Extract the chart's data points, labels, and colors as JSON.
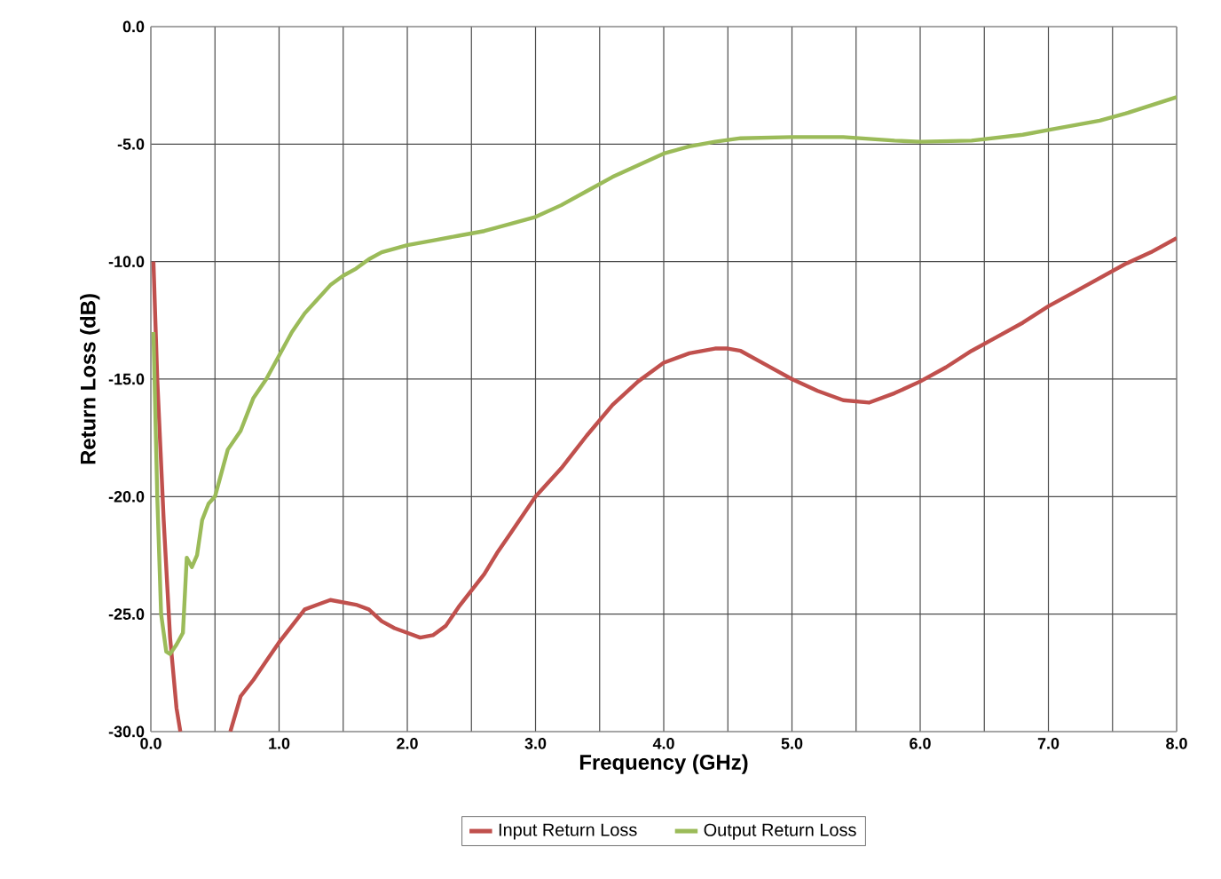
{
  "chart_data": {
    "type": "line",
    "xlabel": "Frequency (GHz)",
    "ylabel": "Return Loss (dB)",
    "grid": true,
    "legend": "bottom",
    "marker": "none",
    "line_style": "solid",
    "xlim": [
      0,
      8
    ],
    "ylim": [
      -30,
      0
    ],
    "xticks": [
      {
        "value": 0,
        "label": "0.0"
      },
      {
        "value": 1,
        "label": "1.0"
      },
      {
        "value": 2,
        "label": "2.0"
      },
      {
        "value": 3,
        "label": "3.0"
      },
      {
        "value": 4,
        "label": "4.0"
      },
      {
        "value": 5,
        "label": "5.0"
      },
      {
        "value": 6,
        "label": "6.0"
      },
      {
        "value": 7,
        "label": "7.0"
      },
      {
        "value": 8,
        "label": "8.0"
      }
    ],
    "yticks": [
      {
        "value": 0,
        "label": "0.0"
      },
      {
        "value": -5,
        "label": "-5.0"
      },
      {
        "value": -10,
        "label": "-10.0"
      },
      {
        "value": -15,
        "label": "-15.0"
      },
      {
        "value": -20,
        "label": "-20.0"
      },
      {
        "value": -25,
        "label": "-25.0"
      },
      {
        "value": -30,
        "label": "-30.0"
      }
    ],
    "series": [
      {
        "name": "Input Return Loss",
        "color": "#c0504d",
        "x": [
          0.02,
          0.05,
          0.1,
          0.15,
          0.2,
          0.23,
          0.4,
          0.62,
          0.7,
          0.8,
          0.9,
          1.0,
          1.1,
          1.2,
          1.3,
          1.4,
          1.5,
          1.6,
          1.7,
          1.8,
          1.9,
          2.0,
          2.1,
          2.2,
          2.3,
          2.4,
          2.5,
          2.6,
          2.7,
          2.8,
          2.9,
          3.0,
          3.2,
          3.4,
          3.6,
          3.8,
          4.0,
          4.2,
          4.4,
          4.5,
          4.6,
          4.8,
          5.0,
          5.2,
          5.4,
          5.6,
          5.8,
          6.0,
          6.2,
          6.4,
          6.6,
          6.8,
          7.0,
          7.2,
          7.4,
          7.6,
          7.8,
          8.0
        ],
        "values": [
          -10,
          -15,
          -21,
          -26,
          -29,
          -30,
          null,
          -30,
          -28.5,
          -27.8,
          -27,
          -26.2,
          -25.5,
          -24.8,
          -24.6,
          -24.4,
          -24.5,
          -24.6,
          -24.8,
          -25.3,
          -25.6,
          -25.8,
          -26.0,
          -25.9,
          -25.5,
          -24.7,
          -24.0,
          -23.3,
          -22.4,
          -21.6,
          -20.8,
          -20.0,
          -18.8,
          -17.4,
          -16.1,
          -15.1,
          -14.3,
          -13.9,
          -13.7,
          -13.7,
          -13.8,
          -14.4,
          -15.0,
          -15.5,
          -15.9,
          -16.0,
          -15.6,
          -15.1,
          -14.5,
          -13.8,
          -13.2,
          -12.6,
          -11.9,
          -11.3,
          -10.7,
          -10.1,
          -9.6,
          -9.0
        ]
      },
      {
        "name": "Output Return Loss",
        "color": "#9bbb59",
        "x": [
          0.02,
          0.05,
          0.08,
          0.12,
          0.15,
          0.2,
          0.25,
          0.28,
          0.32,
          0.36,
          0.4,
          0.45,
          0.5,
          0.55,
          0.6,
          0.7,
          0.8,
          0.9,
          1.0,
          1.1,
          1.2,
          1.3,
          1.4,
          1.5,
          1.6,
          1.7,
          1.8,
          2.0,
          2.2,
          2.4,
          2.6,
          2.8,
          3.0,
          3.2,
          3.4,
          3.6,
          3.8,
          4.0,
          4.2,
          4.4,
          4.6,
          5.0,
          5.4,
          5.8,
          6.0,
          6.4,
          6.8,
          7.0,
          7.4,
          7.6,
          8.0
        ],
        "values": [
          -13,
          -20,
          -25,
          -26.6,
          -26.7,
          -26.3,
          -25.8,
          -22.6,
          -23,
          -22.5,
          -21.0,
          -20.3,
          -20,
          -19,
          -18,
          -17.2,
          -15.8,
          -15.0,
          -14,
          -13.0,
          -12.2,
          -11.6,
          -11.0,
          -10.6,
          -10.3,
          -9.9,
          -9.6,
          -9.3,
          -9.1,
          -8.9,
          -8.7,
          -8.4,
          -8.1,
          -7.6,
          -7.0,
          -6.4,
          -5.9,
          -5.4,
          -5.1,
          -4.9,
          -4.75,
          -4.7,
          -4.7,
          -4.85,
          -4.9,
          -4.85,
          -4.6,
          -4.4,
          -4.0,
          -3.7,
          -3.0
        ]
      }
    ]
  }
}
